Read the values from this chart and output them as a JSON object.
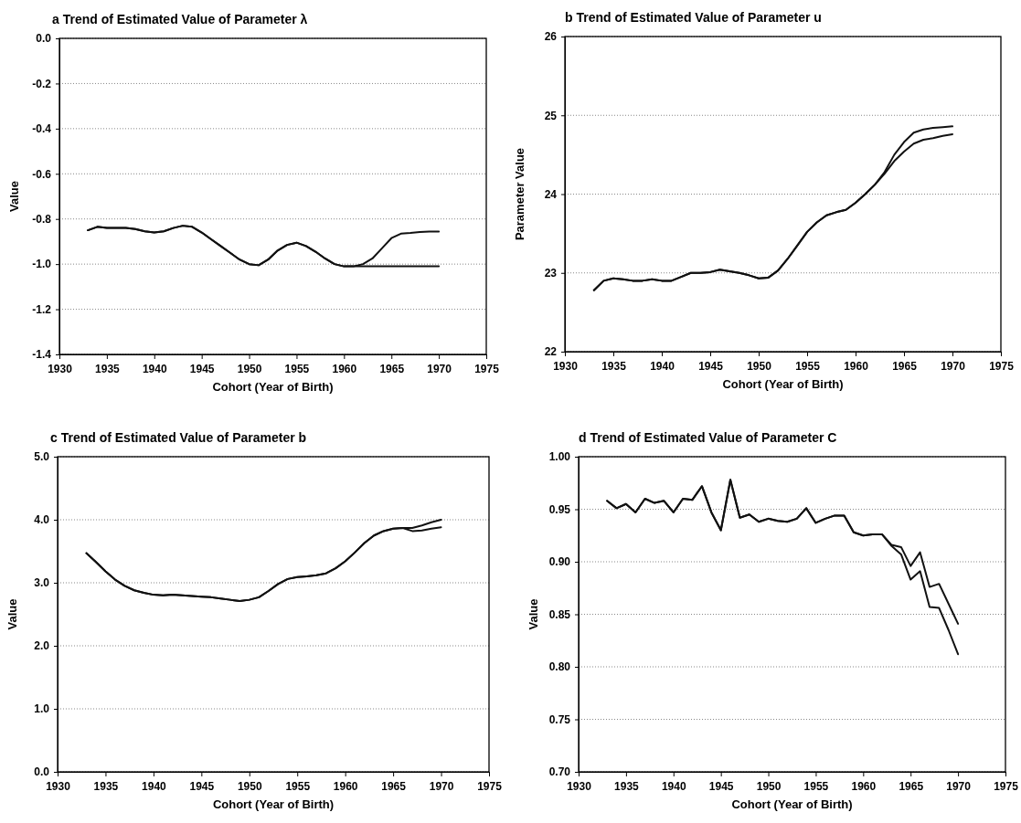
{
  "chart_data": [
    {
      "type": "line",
      "title": "a  Trend of Estimated Value of Parameter λ",
      "xlabel": "Cohort (Year of Birth)",
      "ylabel": "Value",
      "xlim": [
        1930,
        1975
      ],
      "xticks": [
        1930,
        1935,
        1940,
        1945,
        1950,
        1955,
        1960,
        1965,
        1970,
        1975
      ],
      "ylim": [
        -1.4,
        0
      ],
      "yticks": [
        {
          "value": -1.4,
          "label": "-1.4"
        },
        {
          "value": -1.2,
          "label": "-1.2"
        },
        {
          "value": -1,
          "label": "-1.0"
        },
        {
          "value": -0.8,
          "label": "-0.8"
        },
        {
          "value": -0.6,
          "label": "-0.6"
        },
        {
          "value": -0.4,
          "label": "-0.4"
        },
        {
          "value": -0.2,
          "label": "-0.2"
        },
        {
          "value": 0,
          "label": "0.0"
        }
      ],
      "grid": "y",
      "line_style": "solid",
      "marker": "none",
      "x": [
        1933,
        1934,
        1935,
        1936,
        1937,
        1938,
        1939,
        1940,
        1941,
        1942,
        1943,
        1944,
        1945,
        1946,
        1947,
        1948,
        1949,
        1950,
        1951,
        1952,
        1953,
        1954,
        1955,
        1956,
        1957,
        1958,
        1959,
        1960,
        1961,
        1962,
        1963,
        1964,
        1965,
        1966,
        1967,
        1968,
        1969,
        1970
      ],
      "series": [
        {
          "color": "#111111",
          "values": [
            -0.85,
            -0.835,
            -0.84,
            -0.84,
            -0.84,
            -0.845,
            -0.855,
            -0.86,
            -0.855,
            -0.84,
            -0.83,
            -0.835,
            -0.86,
            -0.89,
            -0.92,
            -0.95,
            -0.98,
            -1.0,
            -1.005,
            -0.98,
            -0.94,
            -0.915,
            -0.905,
            -0.92,
            -0.945,
            -0.975,
            -1.0,
            -1.01,
            -1.01,
            -1.0,
            -0.975,
            -0.93,
            -0.885,
            -0.865,
            -0.862,
            -0.858,
            -0.856,
            -0.856
          ]
        },
        {
          "color": "#111111",
          "values": [
            -0.85,
            -0.835,
            -0.84,
            -0.84,
            -0.84,
            -0.845,
            -0.855,
            -0.86,
            -0.855,
            -0.84,
            -0.83,
            -0.835,
            -0.86,
            -0.89,
            -0.92,
            -0.95,
            -0.98,
            -1.0,
            -1.005,
            -0.98,
            -0.94,
            -0.915,
            -0.905,
            -0.92,
            -0.945,
            -0.975,
            -1.0,
            -1.01,
            -1.01,
            -1.01,
            -1.01,
            -1.01,
            -1.01,
            -1.01,
            -1.01,
            -1.01,
            -1.01,
            -1.01
          ]
        }
      ]
    },
    {
      "type": "line",
      "title": "b  Trend of Estimated Value of Parameter u",
      "xlabel": "Cohort (Year of Birth)",
      "ylabel": "Parameter Value",
      "xlim": [
        1930,
        1975
      ],
      "xticks": [
        1930,
        1935,
        1940,
        1945,
        1950,
        1955,
        1960,
        1965,
        1970,
        1975
      ],
      "ylim": [
        22,
        26
      ],
      "yticks": [
        22,
        23,
        24,
        25,
        26
      ],
      "grid": "y",
      "line_style": "solid",
      "marker": "none",
      "x": [
        1933,
        1934,
        1935,
        1936,
        1937,
        1938,
        1939,
        1940,
        1941,
        1942,
        1943,
        1944,
        1945,
        1946,
        1947,
        1948,
        1949,
        1950,
        1951,
        1952,
        1953,
        1954,
        1955,
        1956,
        1957,
        1958,
        1959,
        1960,
        1961,
        1962,
        1963,
        1964,
        1965,
        1966,
        1967,
        1968,
        1969,
        1970
      ],
      "series": [
        {
          "color": "#111111",
          "values": [
            22.78,
            22.9,
            22.93,
            22.92,
            22.9,
            22.9,
            22.92,
            22.9,
            22.9,
            22.95,
            23.0,
            23.0,
            23.01,
            23.04,
            23.02,
            23.0,
            22.97,
            22.93,
            22.94,
            23.03,
            23.18,
            23.35,
            23.52,
            23.64,
            23.73,
            23.77,
            23.8,
            23.89,
            24.0,
            24.12,
            24.28,
            24.5,
            24.66,
            24.78,
            24.82,
            24.84,
            24.85,
            24.86
          ]
        },
        {
          "color": "#111111",
          "values": [
            22.78,
            22.9,
            22.93,
            22.92,
            22.9,
            22.9,
            22.92,
            22.9,
            22.9,
            22.95,
            23.0,
            23.0,
            23.01,
            23.04,
            23.02,
            23.0,
            22.97,
            22.93,
            22.94,
            23.03,
            23.18,
            23.35,
            23.52,
            23.64,
            23.73,
            23.77,
            23.8,
            23.89,
            24.0,
            24.12,
            24.26,
            24.42,
            24.54,
            24.64,
            24.69,
            24.71,
            24.74,
            24.76
          ]
        }
      ]
    },
    {
      "type": "line",
      "title": "c  Trend of Estimated Value of Parameter b",
      "xlabel": "Cohort (Year of Birth)",
      "ylabel": "Value",
      "xlim": [
        1930,
        1975
      ],
      "xticks": [
        1930,
        1935,
        1940,
        1945,
        1950,
        1955,
        1960,
        1965,
        1970,
        1975
      ],
      "ylim": [
        0,
        5
      ],
      "yticks": [
        {
          "value": 0,
          "label": "0.0"
        },
        {
          "value": 1,
          "label": "1.0"
        },
        {
          "value": 2,
          "label": "2.0"
        },
        {
          "value": 3,
          "label": "3.0"
        },
        {
          "value": 4,
          "label": "4.0"
        },
        {
          "value": 5,
          "label": "5.0"
        }
      ],
      "grid": "y",
      "line_style": "solid",
      "marker": "none",
      "x": [
        1933,
        1934,
        1935,
        1936,
        1937,
        1938,
        1939,
        1940,
        1941,
        1942,
        1943,
        1944,
        1945,
        1946,
        1947,
        1948,
        1949,
        1950,
        1951,
        1952,
        1953,
        1954,
        1955,
        1956,
        1957,
        1958,
        1959,
        1960,
        1961,
        1962,
        1963,
        1964,
        1965,
        1966,
        1967,
        1968,
        1969,
        1970
      ],
      "series": [
        {
          "color": "#111111",
          "values": [
            3.47,
            3.33,
            3.18,
            3.05,
            2.95,
            2.88,
            2.84,
            2.81,
            2.8,
            2.81,
            2.8,
            2.79,
            2.78,
            2.77,
            2.75,
            2.73,
            2.71,
            2.73,
            2.77,
            2.87,
            2.98,
            3.06,
            3.09,
            3.1,
            3.12,
            3.15,
            3.23,
            3.34,
            3.48,
            3.63,
            3.75,
            3.82,
            3.86,
            3.87,
            3.87,
            3.91,
            3.96,
            4.0
          ]
        },
        {
          "color": "#111111",
          "values": [
            3.47,
            3.33,
            3.18,
            3.05,
            2.95,
            2.88,
            2.84,
            2.81,
            2.8,
            2.81,
            2.8,
            2.79,
            2.78,
            2.77,
            2.75,
            2.73,
            2.71,
            2.73,
            2.77,
            2.87,
            2.98,
            3.06,
            3.09,
            3.1,
            3.12,
            3.15,
            3.23,
            3.34,
            3.48,
            3.63,
            3.75,
            3.82,
            3.86,
            3.87,
            3.82,
            3.83,
            3.86,
            3.88
          ]
        }
      ]
    },
    {
      "type": "line",
      "title": "d  Trend of Estimated Value of Parameter C",
      "xlabel": "Cohort (Year of Birth)",
      "ylabel": "Value",
      "xlim": [
        1930,
        1975
      ],
      "xticks": [
        1930,
        1935,
        1940,
        1945,
        1950,
        1955,
        1960,
        1965,
        1970,
        1975
      ],
      "ylim": [
        0.7,
        1
      ],
      "yticks": [
        {
          "value": 0.7,
          "label": "0.70"
        },
        {
          "value": 0.75,
          "label": "0.75"
        },
        {
          "value": 0.8,
          "label": "0.80"
        },
        {
          "value": 0.85,
          "label": "0.85"
        },
        {
          "value": 0.9,
          "label": "0.90"
        },
        {
          "value": 0.95,
          "label": "0.95"
        },
        {
          "value": 1,
          "label": "1.00"
        }
      ],
      "grid": "y",
      "line_style": "solid",
      "marker": "none",
      "x": [
        1933,
        1934,
        1935,
        1936,
        1937,
        1938,
        1939,
        1940,
        1941,
        1942,
        1943,
        1944,
        1945,
        1946,
        1947,
        1948,
        1949,
        1950,
        1951,
        1952,
        1953,
        1954,
        1955,
        1956,
        1957,
        1958,
        1959,
        1960,
        1961,
        1962,
        1963,
        1964,
        1965,
        1966,
        1967,
        1968,
        1969,
        1970
      ],
      "series": [
        {
          "color": "#111111",
          "values": [
            0.958,
            0.951,
            0.955,
            0.947,
            0.96,
            0.956,
            0.958,
            0.947,
            0.96,
            0.959,
            0.972,
            0.947,
            0.93,
            0.978,
            0.942,
            0.945,
            0.938,
            0.941,
            0.939,
            0.938,
            0.941,
            0.951,
            0.937,
            0.941,
            0.944,
            0.944,
            0.928,
            0.925,
            0.926,
            0.926,
            0.916,
            0.914,
            0.896,
            0.909,
            0.876,
            0.879,
            0.86,
            0.841
          ]
        },
        {
          "color": "#111111",
          "values": [
            0.958,
            0.951,
            0.955,
            0.947,
            0.96,
            0.956,
            0.958,
            0.947,
            0.96,
            0.959,
            0.972,
            0.947,
            0.93,
            0.978,
            0.942,
            0.945,
            0.938,
            0.941,
            0.939,
            0.938,
            0.941,
            0.951,
            0.937,
            0.941,
            0.944,
            0.944,
            0.928,
            0.925,
            0.926,
            0.926,
            0.915,
            0.907,
            0.883,
            0.891,
            0.857,
            0.856,
            0.835,
            0.812
          ]
        }
      ]
    }
  ]
}
